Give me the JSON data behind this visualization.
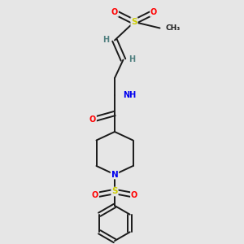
{
  "bg_color": "#e6e6e6",
  "bond_color": "#1a1a1a",
  "atom_colors": {
    "O": "#ff0000",
    "N": "#0000ee",
    "S": "#cccc00",
    "H": "#508080",
    "C": "#1a1a1a"
  },
  "figsize": [
    3.0,
    3.0
  ],
  "dpi": 100
}
